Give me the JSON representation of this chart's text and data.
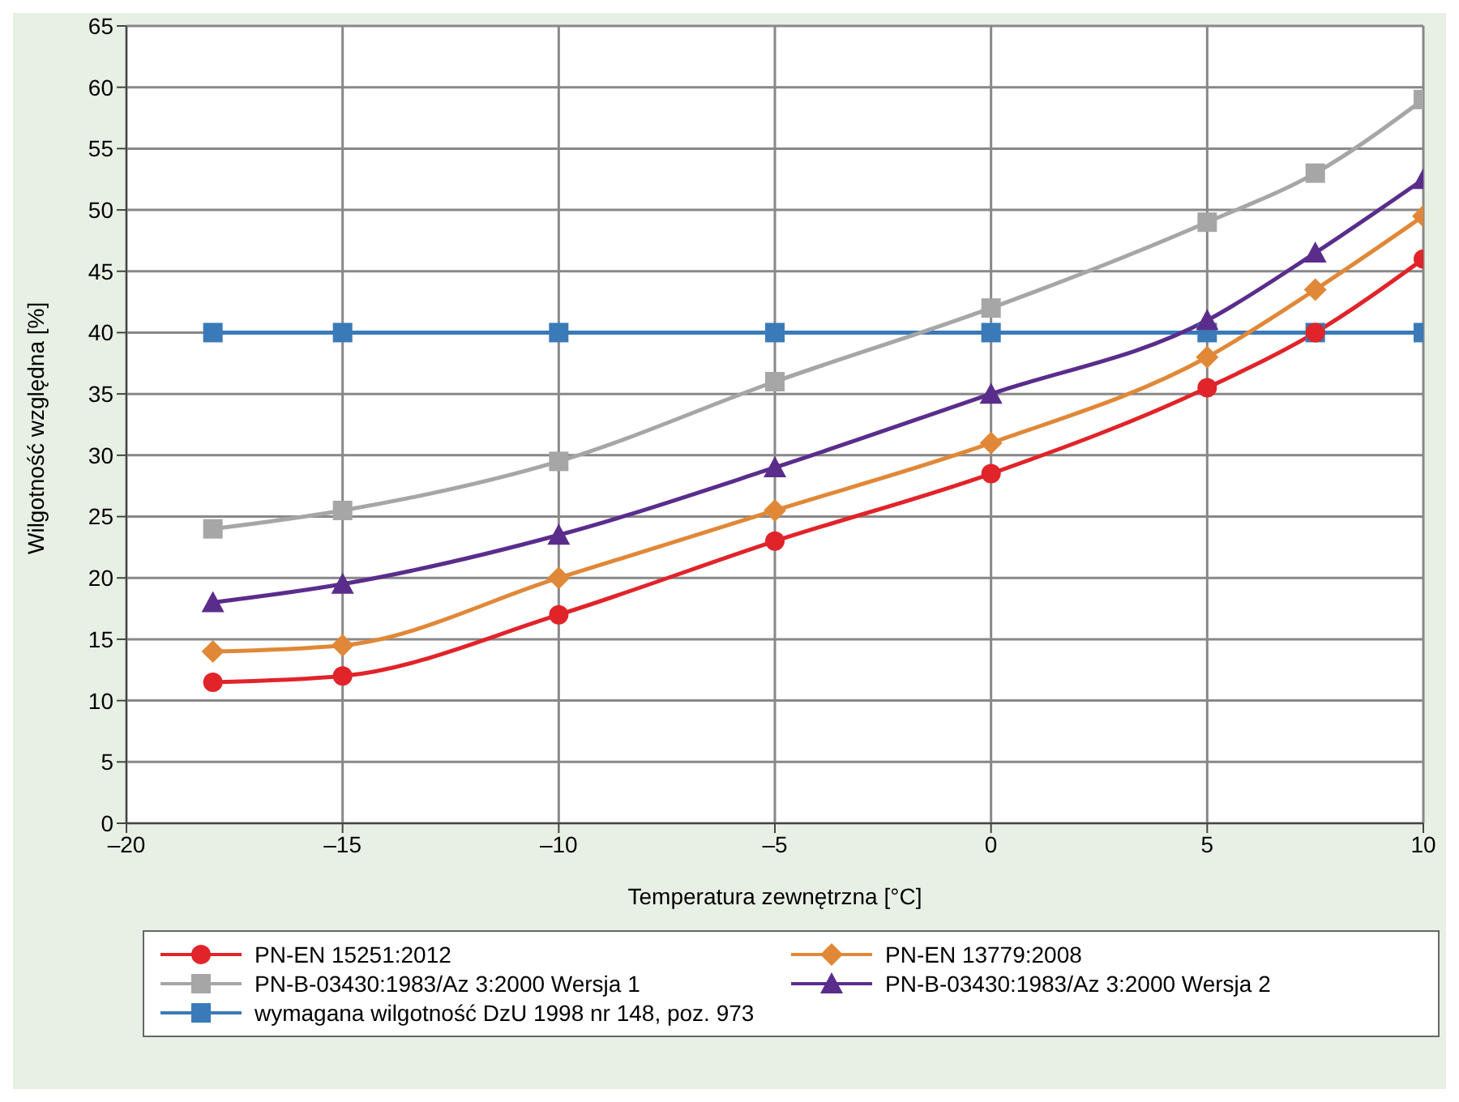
{
  "chart_data": {
    "type": "line",
    "xlabel": "Temperatura zewnętrzna [°C]",
    "ylabel": "Wilgotność względna [%]",
    "x": [
      -18,
      -15,
      -10,
      -5,
      0,
      5,
      7.5,
      10
    ],
    "xlim": [
      -20,
      10
    ],
    "xticks": [
      {
        "value": -20,
        "label": "–20"
      },
      {
        "value": -15,
        "label": "–15"
      },
      {
        "value": -10,
        "label": "–10"
      },
      {
        "value": -5,
        "label": "–5"
      },
      0,
      5,
      10
    ],
    "ylim": [
      0,
      65
    ],
    "yticks": [
      0,
      5,
      10,
      15,
      20,
      25,
      30,
      35,
      40,
      45,
      50,
      55,
      60,
      65
    ],
    "grid": true,
    "legend": "bottom",
    "series": [
      {
        "name": "PN-EN 15251:2012",
        "color": "#e0242a",
        "marker": "circle",
        "values": [
          11.5,
          12,
          17,
          23,
          28.5,
          35.5,
          40,
          46
        ]
      },
      {
        "name": "PN-EN 13779:2008",
        "color": "#e08838",
        "marker": "diamond",
        "values": [
          14,
          14.5,
          20,
          25.5,
          31,
          38,
          43.5,
          49.5
        ]
      },
      {
        "name": "PN-B-03430:1983/Az 3:2000 Wersja 1",
        "color": "#a6a6a6",
        "marker": "square",
        "values": [
          24,
          25.5,
          29.5,
          36,
          42,
          49,
          53,
          59
        ]
      },
      {
        "name": "PN-B-03430:1983/Az 3:2000 Wersja 2",
        "color": "#5a2d8c",
        "marker": "triangle",
        "values": [
          18,
          19.5,
          23.5,
          29,
          35,
          41,
          46.5,
          52.5
        ]
      },
      {
        "name": "wymagana wilgotność DzU 1998 nr 148, poz. 973",
        "color": "#3a7ab8",
        "marker": "square",
        "values": [
          40,
          40,
          40,
          40,
          40,
          40,
          40,
          40
        ]
      }
    ]
  }
}
